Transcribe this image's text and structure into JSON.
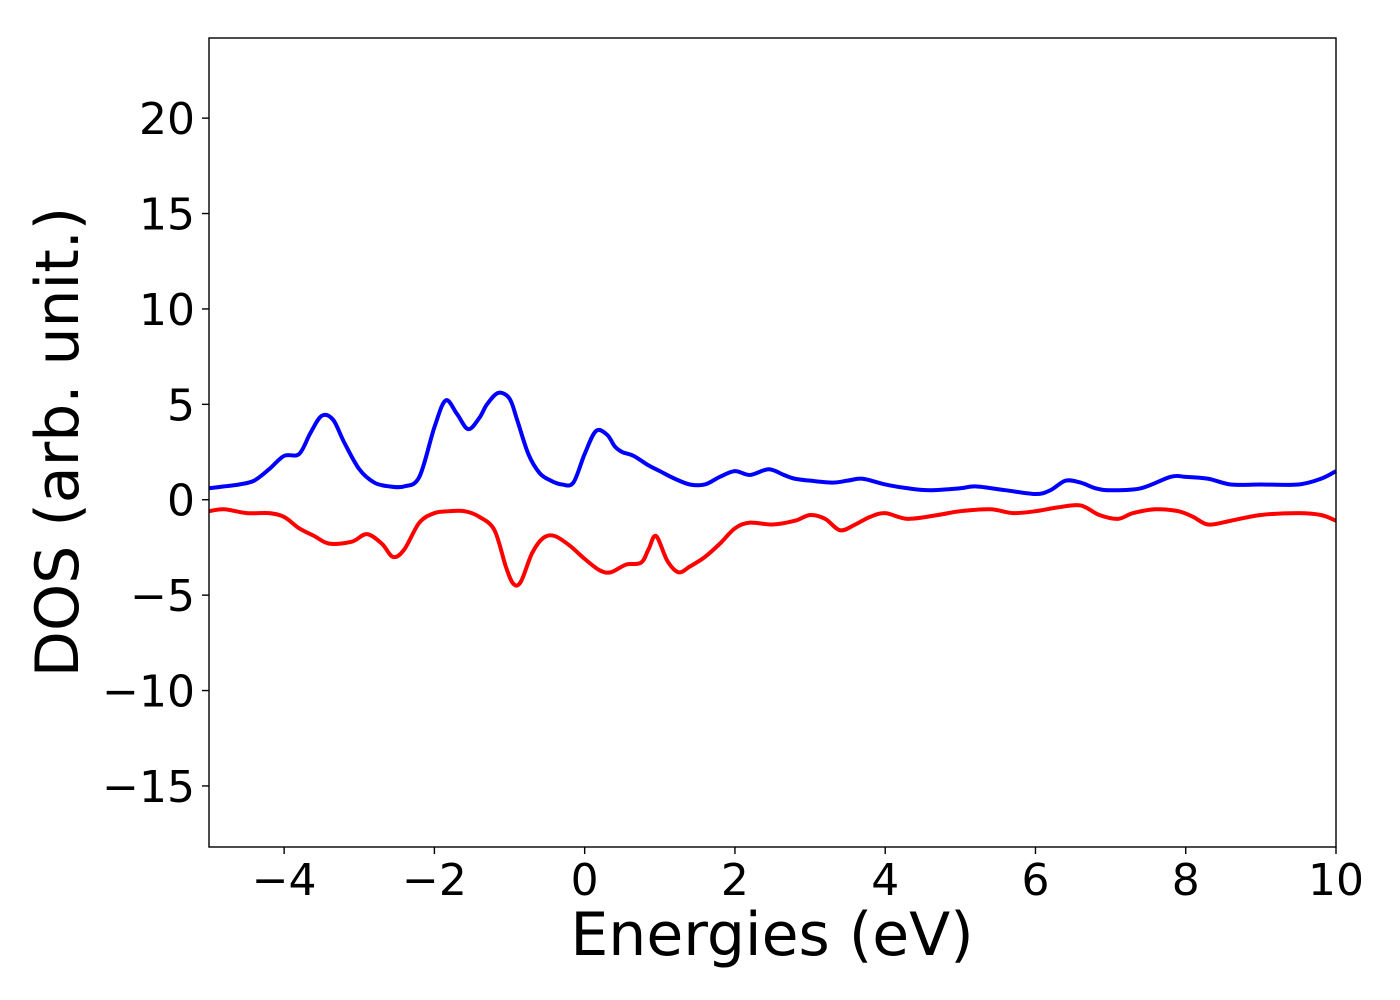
{
  "chart_data": {
    "type": "line",
    "title": "",
    "xlabel": "Energies (eV)",
    "ylabel": "DOS (arb. unit.)",
    "xlim": [
      -5,
      10
    ],
    "ylim": [
      -18.2,
      24.2
    ],
    "xticks": [
      -4,
      -2,
      0,
      2,
      4,
      6,
      8,
      10
    ],
    "xtick_labels": [
      "−4",
      "−2",
      "0",
      "2",
      "4",
      "6",
      "8",
      "10"
    ],
    "yticks": [
      -15,
      -10,
      -5,
      0,
      5,
      10,
      15,
      20
    ],
    "ytick_labels": [
      "−15",
      "−10",
      "−5",
      "0",
      "5",
      "10",
      "15",
      "20"
    ],
    "grid": false,
    "legend": "none",
    "series": [
      {
        "color": "#0000ff",
        "x": [
          -5.0,
          -4.8,
          -4.6,
          -4.4,
          -4.2,
          -4.0,
          -3.8,
          -3.65,
          -3.5,
          -3.35,
          -3.2,
          -3.0,
          -2.8,
          -2.6,
          -2.4,
          -2.2,
          -2.0,
          -1.85,
          -1.7,
          -1.55,
          -1.4,
          -1.3,
          -1.15,
          -1.0,
          -0.9,
          -0.75,
          -0.6,
          -0.45,
          -0.3,
          -0.15,
          0.0,
          0.15,
          0.3,
          0.4,
          0.5,
          0.65,
          0.85,
          1.0,
          1.2,
          1.4,
          1.6,
          1.8,
          2.0,
          2.2,
          2.45,
          2.65,
          2.8,
          3.0,
          3.3,
          3.5,
          3.7,
          4.0,
          4.3,
          4.6,
          5.0,
          5.2,
          5.6,
          6.0,
          6.2,
          6.4,
          6.6,
          6.8,
          7.0,
          7.4,
          7.8,
          8.0,
          8.3,
          8.6,
          9.0,
          9.5,
          9.8,
          10.0
        ],
        "y": [
          0.6,
          0.7,
          0.8,
          1.0,
          1.6,
          2.3,
          2.4,
          3.5,
          4.4,
          4.2,
          3.0,
          1.6,
          0.9,
          0.7,
          0.7,
          1.2,
          3.8,
          5.2,
          4.5,
          3.7,
          4.3,
          5.0,
          5.6,
          5.3,
          4.2,
          2.4,
          1.4,
          1.0,
          0.8,
          0.9,
          2.4,
          3.6,
          3.4,
          2.8,
          2.5,
          2.3,
          1.8,
          1.5,
          1.1,
          0.8,
          0.8,
          1.2,
          1.5,
          1.3,
          1.6,
          1.3,
          1.1,
          1.0,
          0.9,
          1.0,
          1.1,
          0.8,
          0.6,
          0.5,
          0.6,
          0.7,
          0.5,
          0.3,
          0.5,
          1.0,
          0.9,
          0.6,
          0.5,
          0.6,
          1.2,
          1.2,
          1.1,
          0.8,
          0.8,
          0.8,
          1.1,
          1.5
        ]
      },
      {
        "color": "#ff0000",
        "x": [
          -5.0,
          -4.8,
          -4.5,
          -4.2,
          -4.0,
          -3.8,
          -3.6,
          -3.4,
          -3.1,
          -2.9,
          -2.7,
          -2.55,
          -2.4,
          -2.2,
          -2.0,
          -1.8,
          -1.6,
          -1.4,
          -1.2,
          -1.05,
          -0.95,
          -0.85,
          -0.7,
          -0.55,
          -0.4,
          -0.2,
          0.0,
          0.2,
          0.35,
          0.55,
          0.75,
          0.85,
          0.95,
          1.1,
          1.25,
          1.4,
          1.6,
          1.8,
          2.0,
          2.2,
          2.5,
          2.8,
          3.0,
          3.2,
          3.4,
          3.6,
          3.8,
          4.0,
          4.3,
          4.7,
          5.0,
          5.4,
          5.7,
          6.0,
          6.3,
          6.6,
          6.85,
          7.1,
          7.3,
          7.6,
          7.9,
          8.1,
          8.3,
          8.6,
          9.0,
          9.5,
          9.8,
          10.0
        ],
        "y": [
          -0.6,
          -0.5,
          -0.7,
          -0.7,
          -0.9,
          -1.5,
          -1.9,
          -2.3,
          -2.2,
          -1.8,
          -2.3,
          -3.0,
          -2.6,
          -1.2,
          -0.7,
          -0.6,
          -0.6,
          -0.9,
          -1.6,
          -3.5,
          -4.4,
          -4.3,
          -2.8,
          -2.0,
          -1.9,
          -2.4,
          -3.1,
          -3.7,
          -3.8,
          -3.4,
          -3.3,
          -2.6,
          -1.9,
          -3.2,
          -3.8,
          -3.5,
          -3.0,
          -2.3,
          -1.5,
          -1.2,
          -1.3,
          -1.1,
          -0.8,
          -1.0,
          -1.6,
          -1.3,
          -0.9,
          -0.7,
          -1.0,
          -0.8,
          -0.6,
          -0.5,
          -0.7,
          -0.6,
          -0.4,
          -0.3,
          -0.8,
          -1.0,
          -0.7,
          -0.5,
          -0.6,
          -0.9,
          -1.3,
          -1.1,
          -0.8,
          -0.7,
          -0.8,
          -1.1
        ]
      }
    ]
  }
}
